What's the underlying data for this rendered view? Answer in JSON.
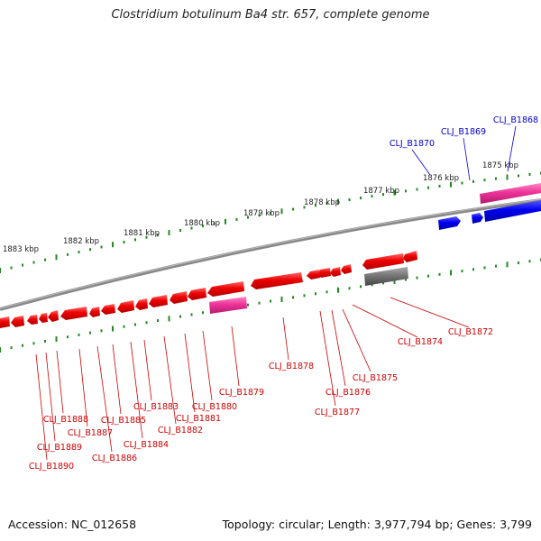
{
  "title": "Clostridium botulinum Ba4 str. 657, complete genome",
  "footer": {
    "accession": "Accession: NC_012658",
    "summary": "Topology: circular; Length: 3,977,794 bp; Genes: 3,799"
  },
  "colors": {
    "forward_gene": "#0000ee",
    "reverse_gene": "#ee0000",
    "rna_gene": "#ee3399",
    "pseudo_gene": "#777777",
    "backbone": "#888888",
    "tick": "#228822",
    "forward_label": "#0000cc",
    "reverse_label": "#cc0000"
  },
  "scale": {
    "unit": "kbp",
    "ticks": [
      "1875 kbp",
      "1876 kbp",
      "1877 kbp",
      "1878 kbp",
      "1879 kbp",
      "1880 kbp",
      "1881 kbp",
      "1882 kbp",
      "1883 kbp"
    ]
  },
  "forward_labels": [
    "CLJ_B1868",
    "CLJ_B1869",
    "CLJ_B1870"
  ],
  "reverse_labels": [
    "CLJ_B1872",
    "CLJ_B1874",
    "CLJ_B1875",
    "CLJ_B1876",
    "CLJ_B1877",
    "CLJ_B1878",
    "CLJ_B1879",
    "CLJ_B1880",
    "CLJ_B1881",
    "CLJ_B1882",
    "CLJ_B1883",
    "CLJ_B1884",
    "CLJ_B1885",
    "CLJ_B1886",
    "CLJ_B1887",
    "CLJ_B1888",
    "CLJ_B1889",
    "CLJ_B1890"
  ]
}
